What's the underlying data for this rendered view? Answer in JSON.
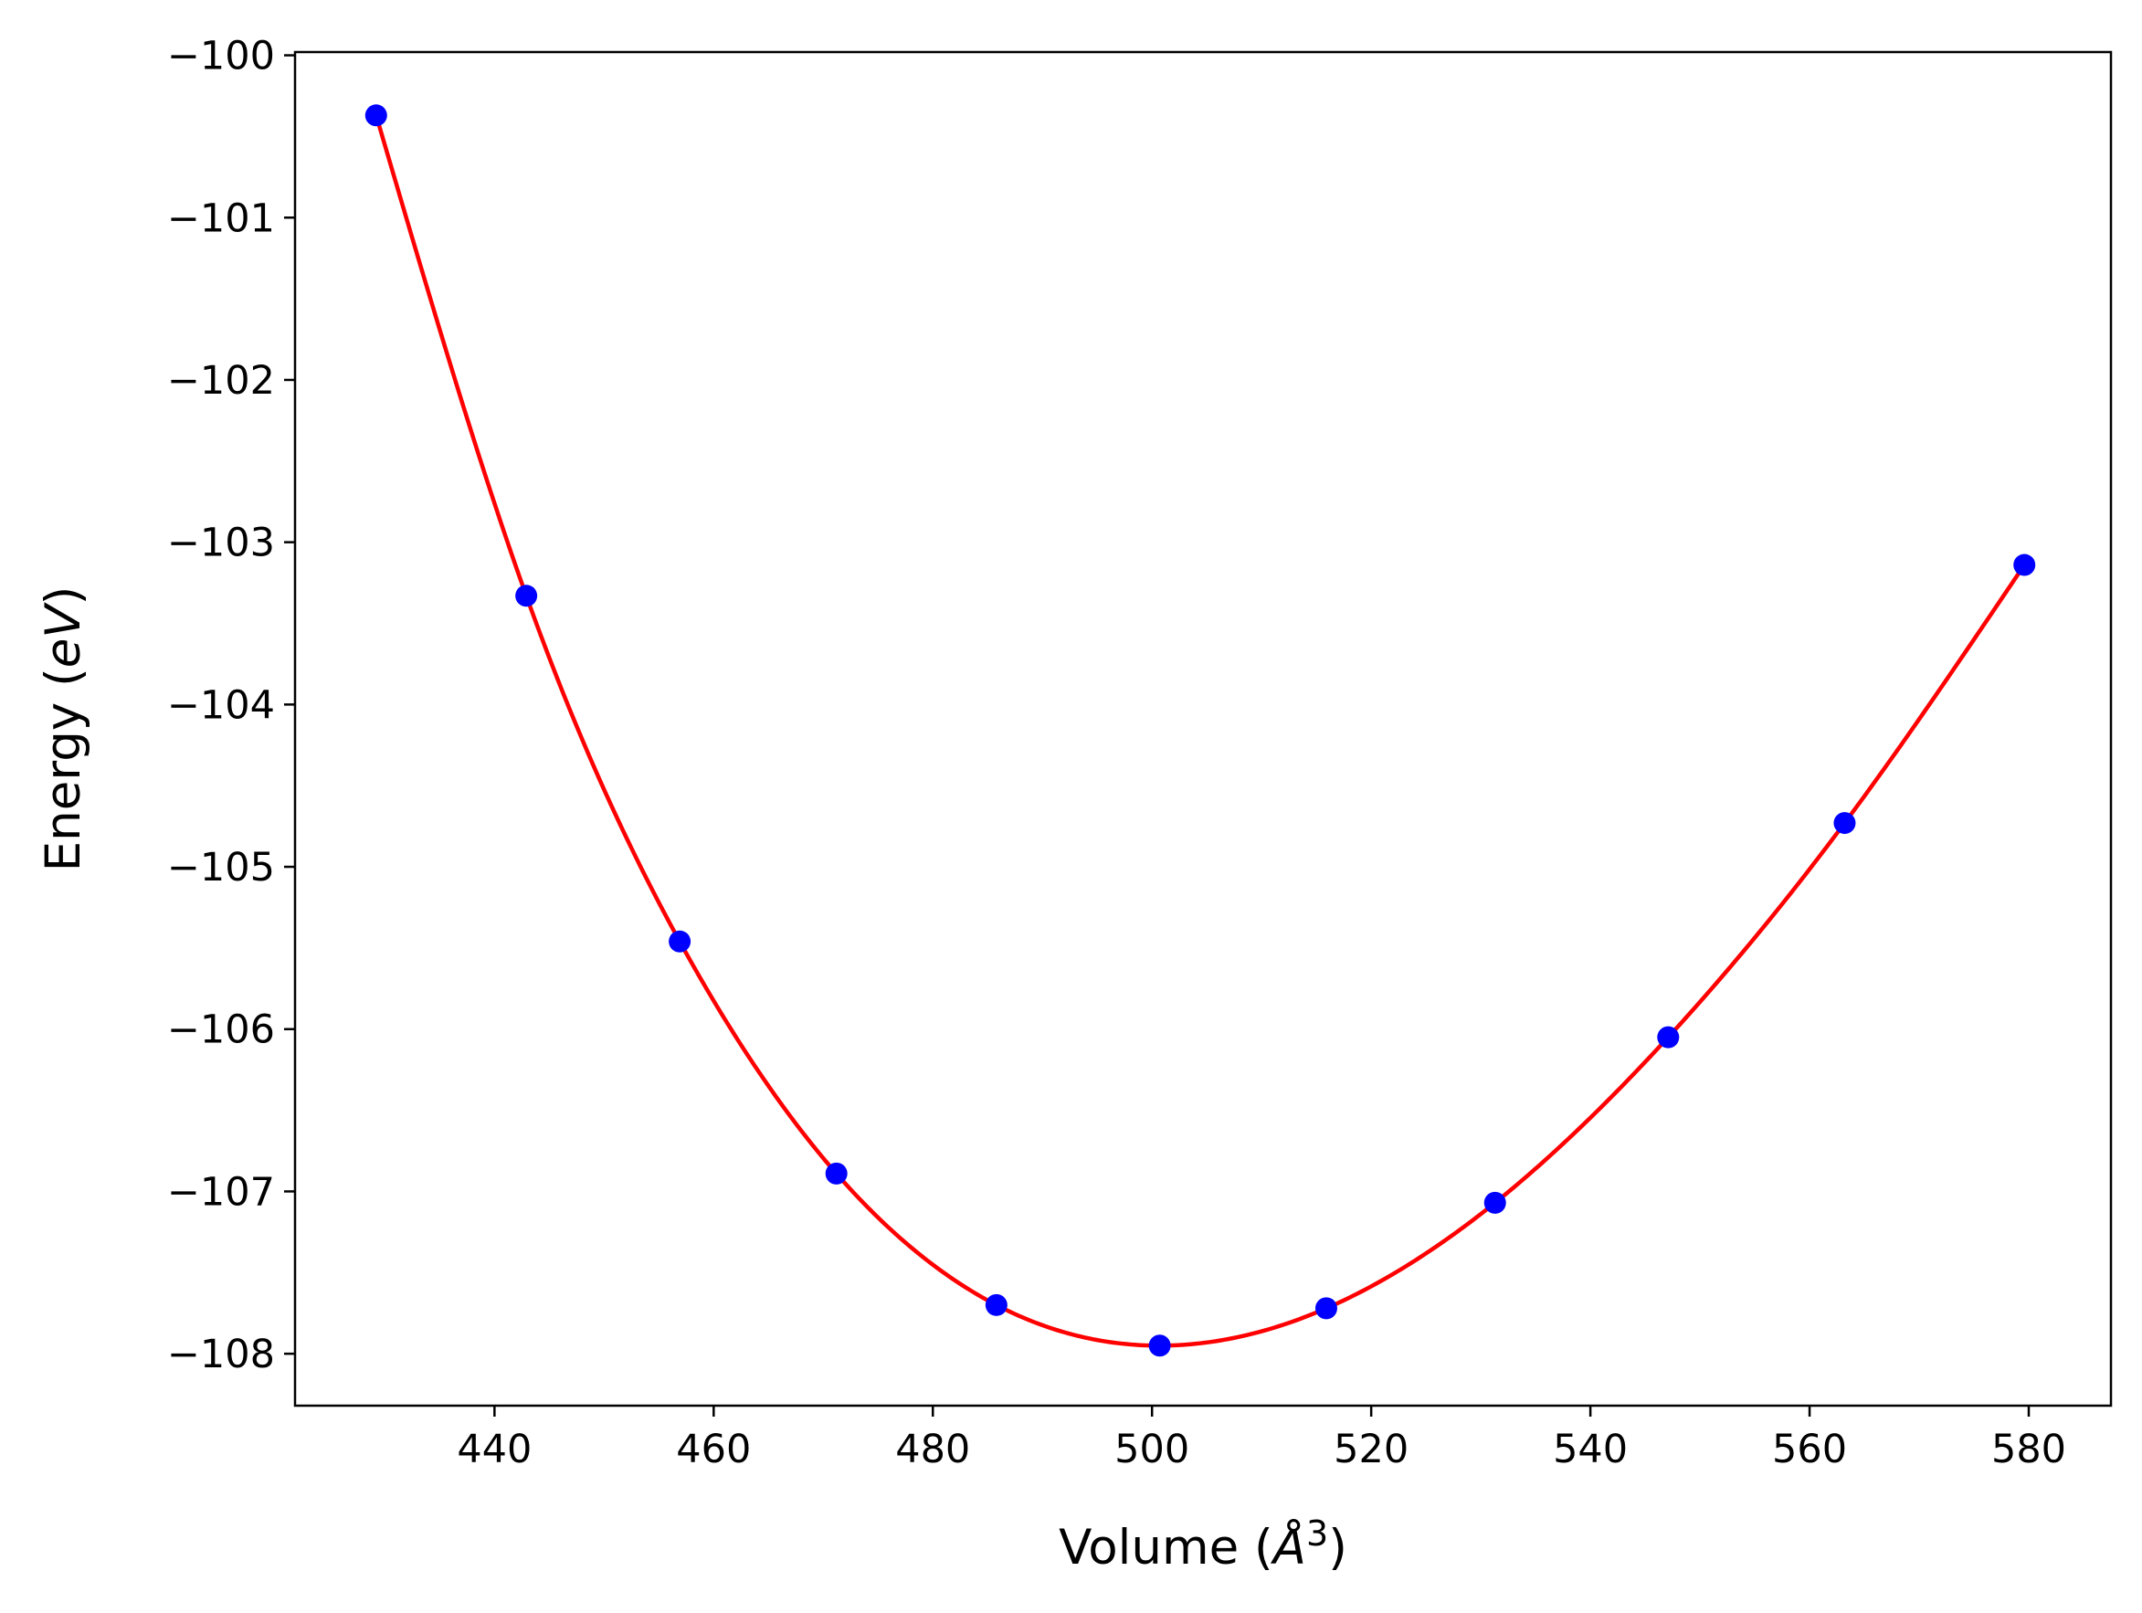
{
  "chart_data": {
    "type": "line",
    "title": "",
    "xlabel": {
      "prefix": "Volume (",
      "unit_symbol": "Å",
      "superscript": "3",
      "suffix": ")"
    },
    "ylabel": {
      "prefix": "Energy (",
      "unit": "eV",
      "suffix": ")"
    },
    "xlim": [
      421.8,
      587.5
    ],
    "ylim": [
      -108.32,
      -99.98
    ],
    "xticks": [
      440,
      460,
      480,
      500,
      520,
      540,
      560,
      580
    ],
    "yticks": [
      -100,
      -101,
      -102,
      -103,
      -104,
      -105,
      -106,
      -107,
      -108
    ],
    "xtick_labels": [
      "440",
      "460",
      "480",
      "500",
      "520",
      "540",
      "560",
      "580"
    ],
    "ytick_labels": [
      "−100",
      "−101",
      "−102",
      "−103",
      "−104",
      "−105",
      "−106",
      "−107",
      "−108"
    ],
    "grid": false,
    "legend": "none",
    "series": [
      {
        "style": "markers",
        "color": "#0000ff",
        "x": [
          429.2,
          442.9,
          456.9,
          471.2,
          485.8,
          500.7,
          515.9,
          531.3,
          547.1,
          563.2,
          579.6
        ],
        "y": [
          -100.37,
          -103.33,
          -105.46,
          -106.89,
          -107.7,
          -107.95,
          -107.72,
          -107.07,
          -106.05,
          -104.73,
          -103.14
        ]
      },
      {
        "style": "line",
        "color": "#ff0000",
        "fit": "cubic-spline-through-points",
        "x": [
          429.2,
          442.9,
          456.9,
          471.2,
          485.8,
          500.7,
          515.9,
          531.3,
          547.1,
          563.2,
          579.6
        ],
        "y": [
          -100.37,
          -103.33,
          -105.46,
          -106.89,
          -107.7,
          -107.95,
          -107.72,
          -107.07,
          -106.05,
          -104.73,
          -103.14
        ]
      }
    ]
  }
}
